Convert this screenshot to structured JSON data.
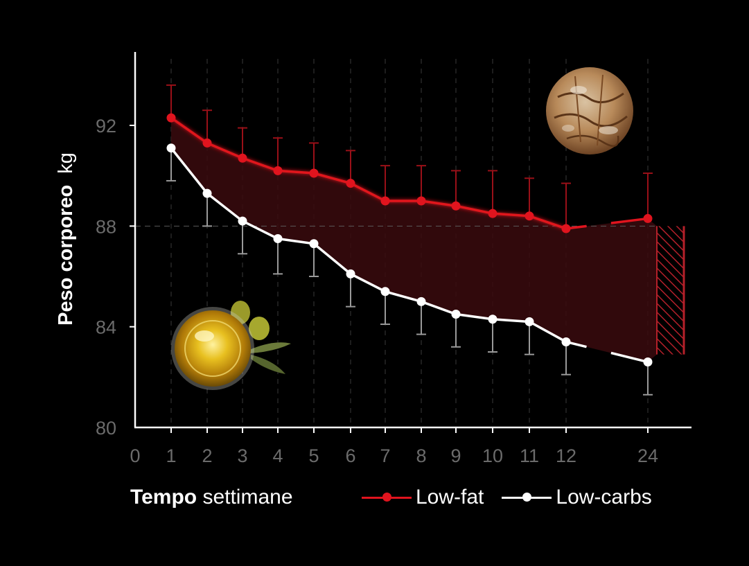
{
  "chart_data": {
    "type": "line",
    "title": "",
    "ylabel": {
      "bold": "Peso corporeo",
      "unit": "kg"
    },
    "xlabel": {
      "bold": "Tempo",
      "unit": "settimane"
    },
    "ylim": [
      80,
      95
    ],
    "yticks": [
      80,
      84,
      88,
      92
    ],
    "x_categories": [
      "0",
      "1",
      "2",
      "3",
      "4",
      "5",
      "6",
      "7",
      "8",
      "9",
      "10",
      "11",
      "12",
      "24"
    ],
    "reference_line_y": 88,
    "grid": "vertical dashed at each tick",
    "series": [
      {
        "name": "Low-fat",
        "color": "#e0141e",
        "x": [
          "1",
          "2",
          "3",
          "4",
          "5",
          "6",
          "7",
          "8",
          "9",
          "10",
          "11",
          "12",
          "24"
        ],
        "y": [
          92.3,
          91.3,
          90.7,
          90.2,
          90.1,
          89.7,
          89.0,
          89.0,
          88.8,
          88.5,
          88.4,
          87.9,
          88.3
        ],
        "error_upper": [
          93.6,
          92.6,
          91.9,
          91.5,
          91.3,
          91.0,
          90.4,
          90.4,
          90.2,
          90.2,
          89.9,
          89.7,
          90.1
        ]
      },
      {
        "name": "Low-carbs",
        "color": "#ffffff",
        "x": [
          "1",
          "2",
          "3",
          "4",
          "5",
          "6",
          "7",
          "8",
          "9",
          "10",
          "11",
          "12",
          "24"
        ],
        "y": [
          91.1,
          89.3,
          88.2,
          87.5,
          87.3,
          86.1,
          85.4,
          85.0,
          84.5,
          84.3,
          84.2,
          83.4,
          82.6
        ],
        "error_lower": [
          89.8,
          88.0,
          86.9,
          86.1,
          86.0,
          84.8,
          84.1,
          83.7,
          83.2,
          83.0,
          82.9,
          82.1,
          81.3
        ]
      }
    ],
    "difference_bracket": {
      "from": 88.0,
      "to": 82.9,
      "color": "#b5202a"
    },
    "legend_position": "bottom-right"
  },
  "illustrations": {
    "top_right": "bread-loaf",
    "bottom_left": "olive-oil-bowl-with-olives"
  }
}
